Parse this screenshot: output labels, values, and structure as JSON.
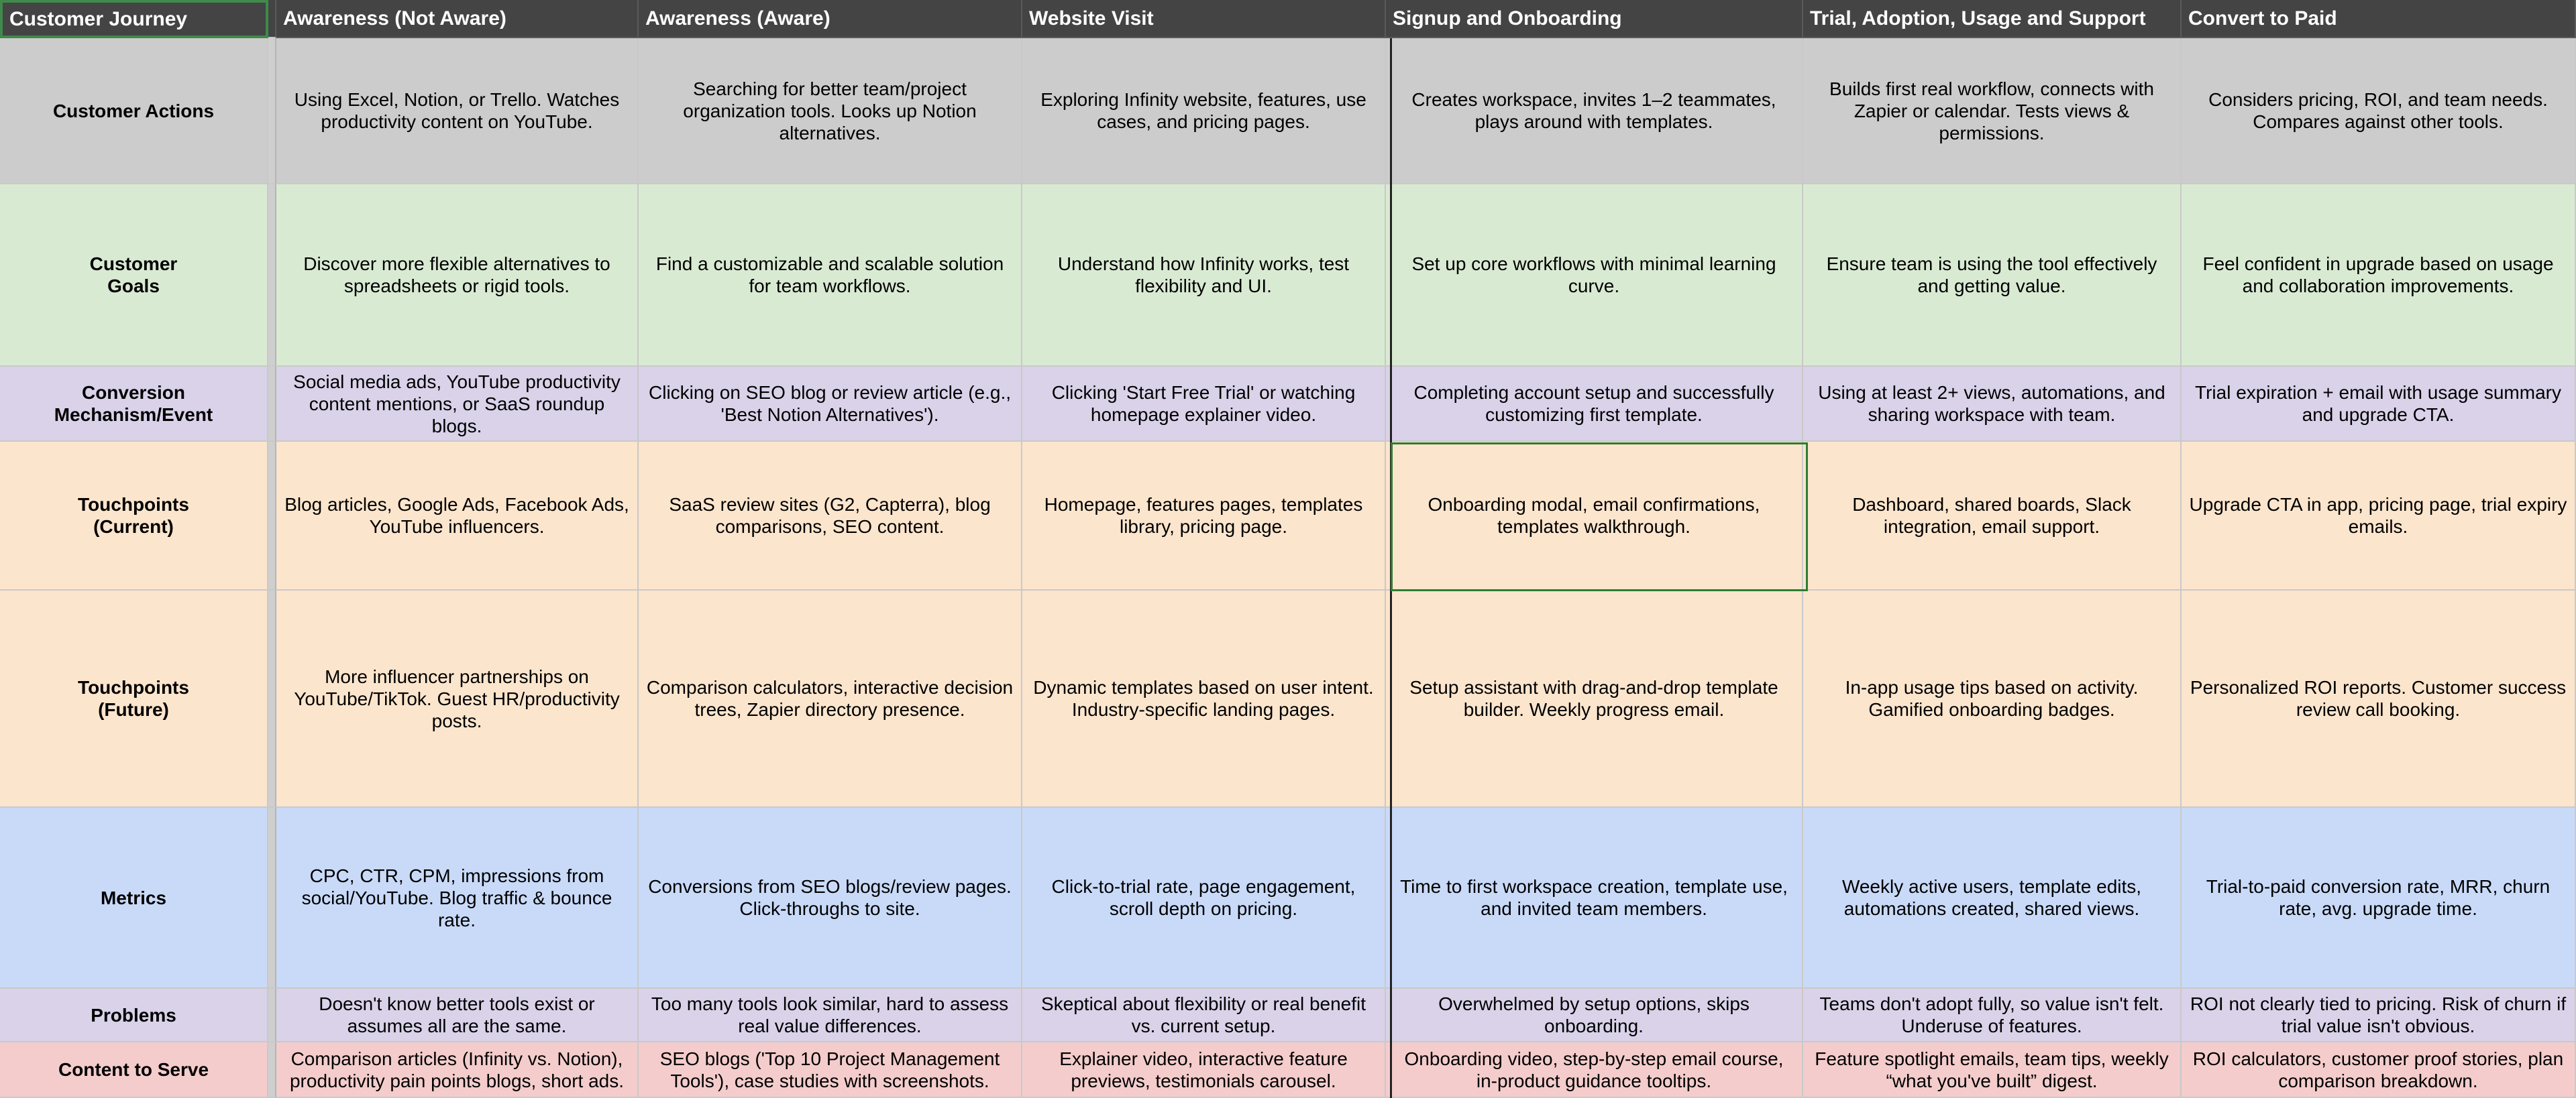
{
  "header": {
    "corner": "Customer Journey",
    "stages": [
      "Awareness (Not Aware)",
      "Awareness (Aware)",
      "Website Visit",
      "Signup and Onboarding",
      "Trial, Adoption, Usage and Support",
      "Convert to Paid"
    ]
  },
  "rows": [
    {
      "label": "Customer Actions",
      "cells": [
        "Using Excel, Notion, or Trello. Watches productivity content on YouTube.",
        "Searching for better team/project organization tools. Looks up Notion alternatives.",
        "Exploring Infinity website, features, use cases, and pricing pages.",
        "Creates workspace, invites 1–2 teammates, plays around with templates.",
        "Builds first real workflow, connects with Zapier or calendar. Tests views & permissions.",
        "Considers pricing, ROI, and team needs. Compares against other tools."
      ]
    },
    {
      "label": "Customer\nGoals",
      "cells": [
        "Discover more flexible alternatives to spreadsheets or rigid tools.",
        "Find a customizable and scalable solution for team workflows.",
        "Understand how Infinity works, test flexibility and UI.",
        "Set up core workflows with minimal learning curve.",
        "Ensure team is using the tool effectively and getting value.",
        "Feel confident in upgrade based on usage and collaboration improvements."
      ]
    },
    {
      "label": "Conversion\nMechanism/Event",
      "cells": [
        "Social media ads, YouTube productivity content mentions, or SaaS roundup blogs.",
        "Clicking on SEO blog or review article (e.g., 'Best Notion Alternatives').",
        "Clicking 'Start Free Trial' or watching homepage explainer video.",
        "Completing account setup and successfully customizing first template.",
        "Using at least 2+ views, automations, and sharing workspace with team.",
        "Trial expiration + email with usage summary and upgrade CTA."
      ]
    },
    {
      "label": "Touchpoints\n(Current)",
      "cells": [
        "Blog articles, Google Ads, Facebook Ads, YouTube influencers.",
        "SaaS review sites (G2, Capterra), blog comparisons, SEO content.",
        "Homepage, features pages, templates library, pricing page.",
        "Onboarding modal, email confirmations, templates walkthrough.",
        "Dashboard, shared boards, Slack integration, email support.",
        "Upgrade CTA in app, pricing page, trial expiry emails."
      ]
    },
    {
      "label": "Touchpoints\n(Future)",
      "cells": [
        "More influencer partnerships on YouTube/TikTok. Guest HR/productivity posts.",
        "Comparison calculators, interactive decision trees, Zapier directory presence.",
        "Dynamic templates based on user intent. Industry-specific landing pages.",
        "Setup assistant with drag-and-drop template builder. Weekly progress email.",
        "In-app usage tips based on activity. Gamified onboarding badges.",
        "Personalized ROI reports. Customer success review call booking."
      ]
    },
    {
      "label": "Metrics",
      "cells": [
        "CPC, CTR, CPM, impressions from social/YouTube. Blog traffic & bounce rate.",
        "Conversions from SEO blogs/review pages. Click-throughs to site.",
        "Click-to-trial rate, page engagement, scroll depth on pricing.",
        "Time to first workspace creation, template use, and invited team members.",
        "Weekly active users, template edits, automations created, shared views.",
        "Trial-to-paid conversion rate, MRR, churn rate, avg. upgrade time."
      ]
    },
    {
      "label": "Problems",
      "cells": [
        "Doesn't know better tools exist or assumes all are the same.",
        "Too many tools look similar, hard to assess real value differences.",
        "Skeptical about flexibility or real benefit vs. current setup.",
        "Overwhelmed by setup options, skips onboarding.",
        "Teams don't adopt fully, so value isn't felt. Underuse of features.",
        "ROI not clearly tied to pricing. Risk of churn if trial value isn't obvious."
      ]
    },
    {
      "label": "Content to Serve",
      "cells": [
        "Comparison articles (Infinity vs. Notion), productivity pain points blogs, short ads.",
        "SEO blogs ('Top 10 Project Management Tools'), case studies with screenshots.",
        "Explainer video, interactive feature previews, testimonials carousel.",
        "Onboarding video, step-by-step email course, in-product guidance tooltips.",
        "Feature spotlight emails, team tips, weekly “what you've built” digest.",
        "ROI calculators, customer proof stories, plan comparison breakdown."
      ]
    }
  ],
  "colors": {
    "header_bg": "#444444",
    "actions": "#cccccc",
    "goals": "#d9ead3",
    "conversion": "#d9d2e9",
    "touchpoints": "#fce5cd",
    "metrics": "#c9daf8",
    "problems": "#d9d2e9",
    "content": "#f4cccc",
    "selection": "#2e7d32"
  }
}
